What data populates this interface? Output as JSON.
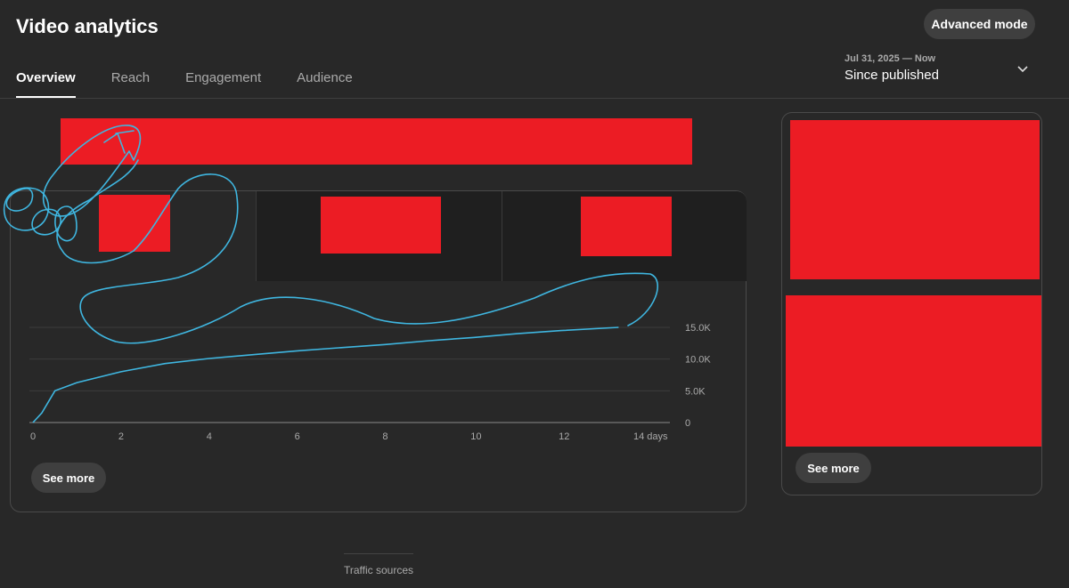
{
  "header": {
    "title": "Video analytics",
    "advanced_mode_label": "Advanced mode"
  },
  "tabs": [
    {
      "label": "Overview",
      "active": true
    },
    {
      "label": "Reach",
      "active": false
    },
    {
      "label": "Engagement",
      "active": false
    },
    {
      "label": "Audience",
      "active": false
    }
  ],
  "date_range": {
    "range": "Jul 31, 2025 — Now",
    "label": "Since published"
  },
  "main_card": {
    "see_more_label": "See more"
  },
  "side_card": {
    "see_more_label": "See more"
  },
  "bottom": {
    "traffic_sources_label": "Traffic sources"
  },
  "colors": {
    "background": "#282828",
    "redaction": "#ec1c24",
    "annotation": "#3fb6e0"
  },
  "chart_data": {
    "type": "line",
    "x_ticks": [
      "0",
      "2",
      "4",
      "6",
      "8",
      "10",
      "12",
      "14 days"
    ],
    "y_ticks": [
      "0",
      "5.0K",
      "10.0K",
      "15.0K"
    ],
    "xlim": [
      0,
      14
    ],
    "ylim": [
      0,
      15000
    ],
    "grid": true,
    "series": [
      {
        "x": [
          0,
          0.2,
          0.5,
          1,
          2,
          3,
          4,
          5,
          6,
          7,
          8,
          9,
          10,
          11,
          12,
          13.3
        ],
        "y": [
          0,
          1500,
          5000,
          6300,
          8000,
          9300,
          10100,
          10700,
          11300,
          11800,
          12300,
          12900,
          13400,
          14000,
          14500,
          15000
        ]
      }
    ]
  }
}
